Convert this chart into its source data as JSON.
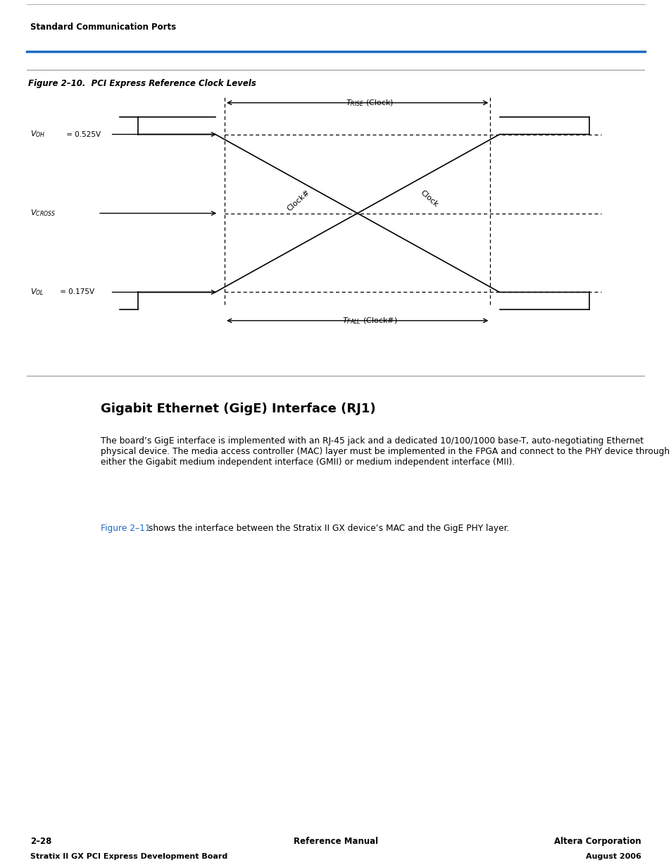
{
  "page_width": 9.54,
  "page_height": 12.27,
  "bg_color": "#ffffff",
  "header_text": "Standard Communication Ports",
  "header_line_color": "#1a6bbf",
  "figure_title": "Figure 2–10.  PCI Express Reference Clock Levels",
  "voh_label": "V",
  "voh_sub": "OH",
  "voh_val": " = 0.525V",
  "vcross_label": "V",
  "vcross_sub": "CROSS",
  "vol_label": "V",
  "vol_sub": "OL",
  "vol_val": " = 0.175V",
  "t_rise_label": "T",
  "t_rise_sub": "RISE",
  "t_rise_suffix": " (Clock)",
  "t_fall_label": "T",
  "t_fall_sub": "FALL",
  "t_fall_suffix": " (Clock#)",
  "clock_label": "Clock",
  "clockhash_label": "Clock#",
  "gige_title": "Gigabit Ethernet (GigE) Interface (RJ1)",
  "body_text": "The board’s GigE interface is implemented with an RJ-45 jack and a dedicated 10/100/1000 base-T, auto-negotiating Ethernet physical device. The media access controller (MAC) layer must be implemented in the FPGA and connect to the PHY device through either the Gigabit medium independent interface (GMII) or medium independent interface (MII).",
  "figure211_text": "Figure 2–11",
  "after_fig_text": " shows the interface between the Stratix II GX device’s MAC and the GigE PHY layer.",
  "footer_left1": "2–28",
  "footer_center": "Reference Manual",
  "footer_right1": "Altera Corporation",
  "footer_left2": "Stratix II GX PCI Express Development Board",
  "footer_right2": "August 2006",
  "diagram_line_color": "#000000",
  "dashed_line_color": "#000000",
  "link_color": "#1a6bbf"
}
